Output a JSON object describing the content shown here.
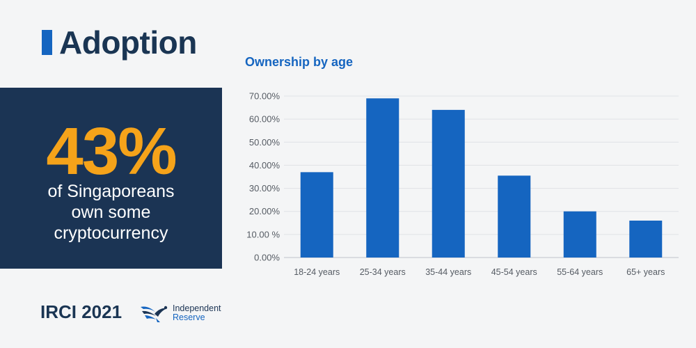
{
  "header": {
    "title": "Adoption"
  },
  "stat": {
    "value": "43%",
    "lines": [
      "of Singaporeans",
      "own some",
      "cryptocurrency"
    ]
  },
  "footer": {
    "label": "IRCI 2021",
    "logo_line1": "Independent",
    "logo_line2": "Reserve"
  },
  "colors": {
    "bar": "#1565c0",
    "accent": "#f5a31a",
    "panel": "#1b3454"
  },
  "chart_data": {
    "type": "bar",
    "title": "Ownership by age",
    "categories": [
      "18-24 years",
      "25-34 years",
      "35-44 years",
      "45-54 years",
      "55-64 years",
      "65+ years"
    ],
    "values": [
      37,
      69,
      64,
      35.5,
      20,
      16
    ],
    "ylim": [
      0,
      70
    ],
    "yticks": [
      0,
      10,
      20,
      30,
      40,
      50,
      60,
      70
    ],
    "ytick_labels": [
      "0.00%",
      "10.00 %",
      "20.00%",
      "30.00%",
      "40.00%",
      "50.00%",
      "60.00%",
      "70.00%"
    ],
    "grid": true
  }
}
